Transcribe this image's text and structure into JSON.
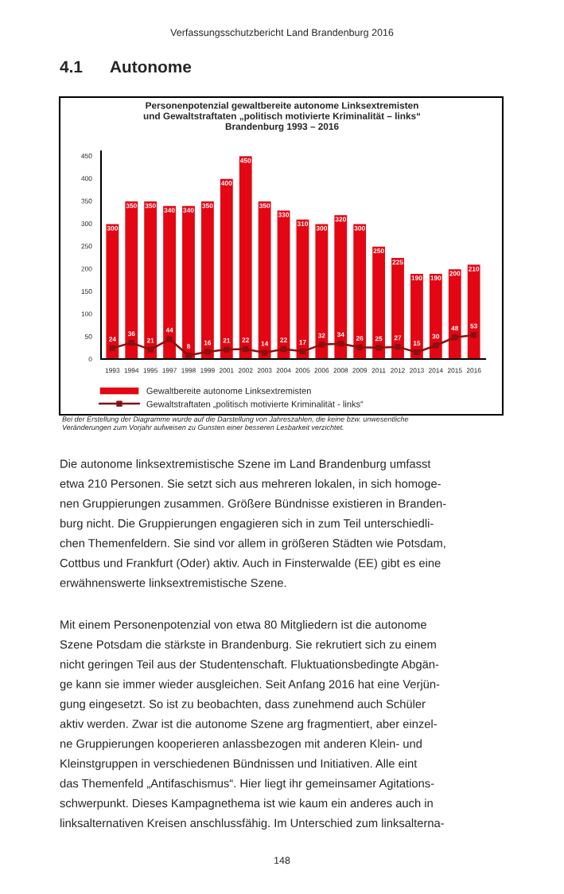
{
  "chart_data": {
    "type": "bar",
    "title": "Personenpotenzial gewaltbereite autonome Linksextremisten\nund Gewaltstraftaten „politisch motivierte Kriminalität – links“\nBrandenburg 1993 – 2016",
    "categories": [
      "1993",
      "1994",
      "1995",
      "1997",
      "1998",
      "1999",
      "2001",
      "2002",
      "2003",
      "2004",
      "2005",
      "2006",
      "2008",
      "2009",
      "2011",
      "2012",
      "2013",
      "2014",
      "2015",
      "2016"
    ],
    "series": [
      {
        "name": "Gewaltbereite autonome Linksextremisten",
        "type": "bar",
        "color": "#e30613",
        "values": [
          300,
          350,
          350,
          340,
          340,
          350,
          400,
          450,
          350,
          330,
          310,
          300,
          320,
          300,
          250,
          225,
          190,
          190,
          200,
          210
        ]
      },
      {
        "name": "Gewaltstraftaten „politisch motivierte Kriminalität - links“",
        "type": "line",
        "color": "#8b1010",
        "marker": "square",
        "values": [
          24,
          36,
          21,
          44,
          8,
          16,
          21,
          22,
          14,
          22,
          17,
          32,
          34,
          26,
          25,
          27,
          15,
          30,
          48,
          53
        ]
      }
    ],
    "ylim": [
      0,
      460
    ],
    "yticks": [
      0,
      50,
      100,
      150,
      200,
      250,
      300,
      350,
      400,
      450
    ],
    "data_labels": true,
    "grid": false,
    "legend": "bottom",
    "annotations": [
      "Verfassungsschutzbericht Land Brandenburg 2016",
      "4.1      Autonome",
      "Bei der Erstellung der Diagramme wurde auf die Darstellung von Jahreszahlen, die keine bzw. unwesentliche\nVeränderungen zum Vorjahr aufweisen zu Gunsten einer besseren Lesbarkeit verzichtet.",
      "Die autonome linksextremistische Szene im Land Brandenburg umfasst\netwa 210 Personen. Sie setzt sich aus mehreren lokalen, in sich homoge-\nnen Gruppierungen zusammen. Größere Bündnisse existieren in Branden-\nburg nicht. Die Gruppierungen engagieren sich in zum Teil unterschiedli-\nchen Themenfeldern. Sie sind vor allem in größeren Städten wie Potsdam,\nCottbus und Frankfurt (Oder) aktiv. Auch in Finsterwalde (EE) gibt es eine\nerwähnenswerte linksextremistische Szene.",
      "Mit einem Personenpotenzial von etwa 80 Mitgliedern ist die autonome\nSzene Potsdam die stärkste in Brandenburg. Sie rekrutiert sich zu einem\nnicht geringen Teil aus der Studentenschaft. Fluktuationsbedingte Abgän-\nge kann sie immer wieder ausgleichen. Seit Anfang 2016 hat eine Verjün-\ngung eingesetzt. So ist zu beobachten, dass zunehmend auch Schüler\naktiv werden. Zwar ist die autonome Szene arg fragmentiert, aber einzel-\nne Gruppierungen kooperieren anlassbezogen mit anderen Klein- und\nKleinstgruppen in verschiedenen Bündnissen und Initiativen. Alle eint\ndas Themenfeld „Antifaschismus“. Hier liegt ihr gemeinsamer Agitations-\nschwerpunkt. Dieses Kampagnethema ist wie kaum ein anderes auch in\nlinksalternativen Kreisen anschlussfähig. Im Unterschied zum linksalterna-",
      "148"
    ]
  }
}
